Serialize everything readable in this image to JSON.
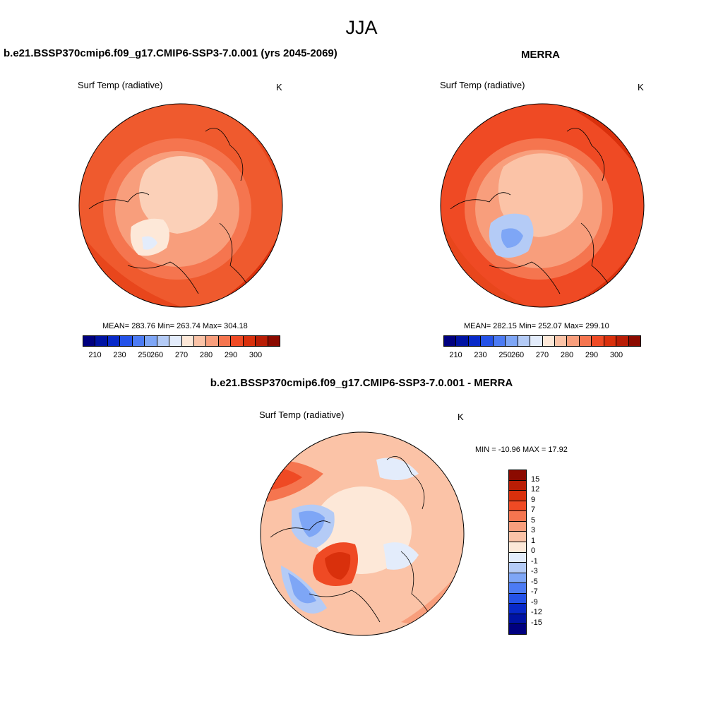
{
  "title": "JJA",
  "panels": {
    "model": {
      "title": "b.e21.BSSP370cmip6.f09_g17.CMIP6-SSP3-7.0.001 (yrs 2045-2069)",
      "variable": "Surf Temp (radiative)",
      "units": "K",
      "stats": "MEAN= 283.76  Min= 263.74  Max= 304.18"
    },
    "obs": {
      "title": "MERRA",
      "variable": "Surf Temp (radiative)",
      "units": "K",
      "stats": "MEAN= 282.15  Min= 252.07  Max= 299.10"
    },
    "diff": {
      "title": "b.e21.BSSP370cmip6.f09_g17.CMIP6-SSP3-7.0.001 - MERRA",
      "variable": "Surf Temp (radiative)",
      "units": "K",
      "stats": "MIN = -10.96 MAX =  17.92"
    }
  },
  "colorbar_abs": {
    "ticks": [
      "210",
      "230",
      "250",
      "260",
      "270",
      "280",
      "290",
      "300"
    ],
    "colors": [
      "#00007f",
      "#0013a3",
      "#0829c8",
      "#2452e8",
      "#4c7bf4",
      "#7ea6f6",
      "#b4cbf6",
      "#e3ecfb",
      "#fde8d8",
      "#fbc3a7",
      "#f89e7c",
      "#f5754f",
      "#ef4a24",
      "#d9300c",
      "#b91d05",
      "#8b0a00"
    ]
  },
  "colorbar_diff": {
    "ticks": [
      "15",
      "12",
      "9",
      "7",
      "5",
      "3",
      "1",
      "0",
      "-1",
      "-3",
      "-5",
      "-7",
      "-9",
      "-12",
      "-15"
    ],
    "colors": [
      "#8b0a00",
      "#b91d05",
      "#d9300c",
      "#ef4a24",
      "#f5754f",
      "#f89e7c",
      "#fbc3a7",
      "#fde8d8",
      "#e3ecfb",
      "#b4cbf6",
      "#7ea6f6",
      "#4c7bf4",
      "#2452e8",
      "#0829c8",
      "#0013a3",
      "#00007f"
    ]
  }
}
